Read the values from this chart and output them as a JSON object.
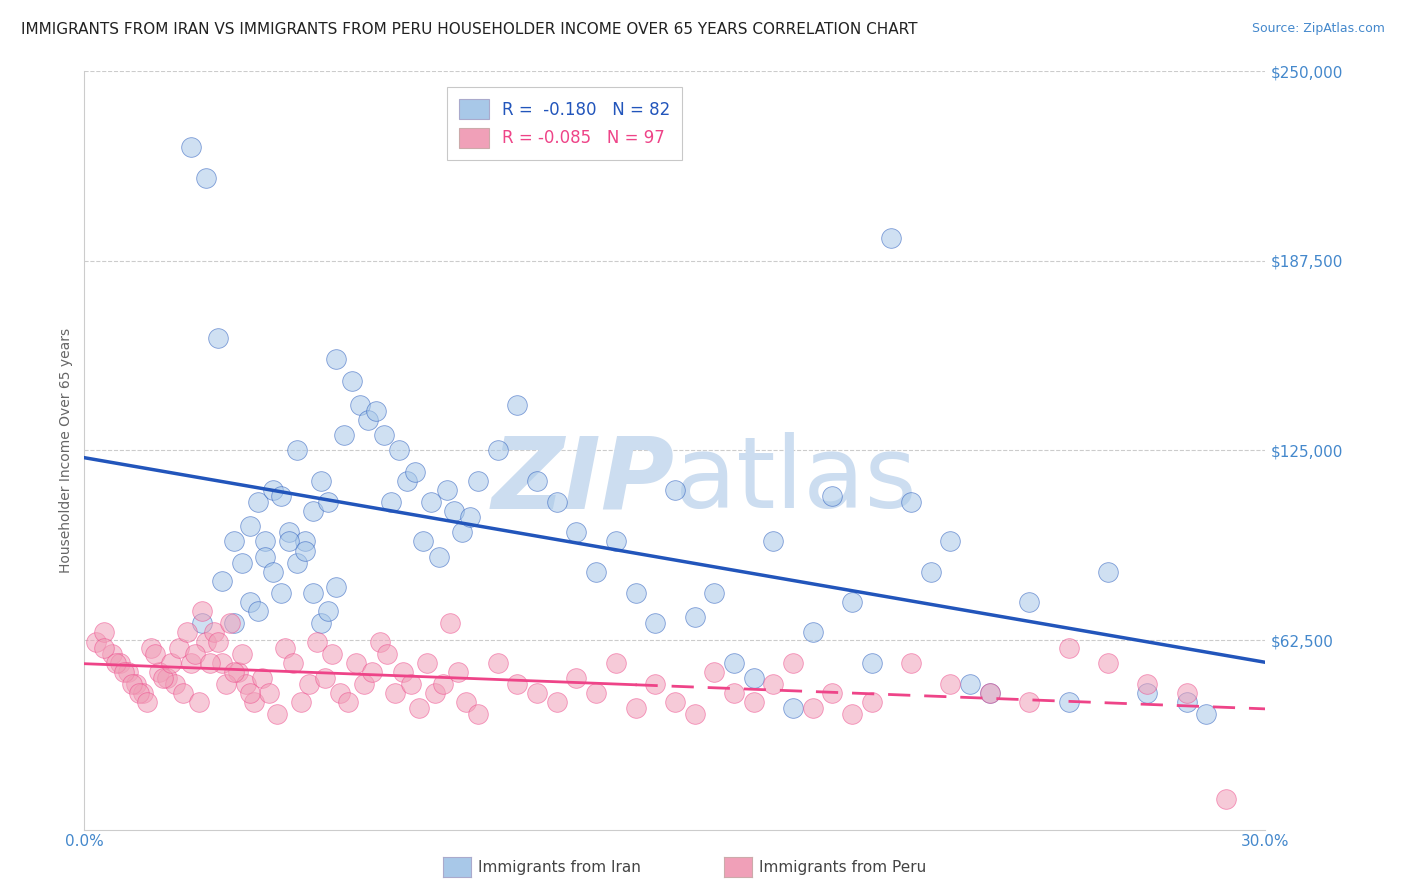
{
  "title": "IMMIGRANTS FROM IRAN VS IMMIGRANTS FROM PERU HOUSEHOLDER INCOME OVER 65 YEARS CORRELATION CHART",
  "source": "Source: ZipAtlas.com",
  "ylabel": "Householder Income Over 65 years",
  "xlim": [
    0.0,
    0.3
  ],
  "ylim": [
    0,
    250000
  ],
  "yticks": [
    0,
    62500,
    125000,
    187500,
    250000
  ],
  "ytick_labels": [
    "",
    "$62,500",
    "$125,000",
    "$187,500",
    "$250,000"
  ],
  "legend_iran_r": "-0.180",
  "legend_iran_n": "82",
  "legend_peru_r": "-0.085",
  "legend_peru_n": "97",
  "color_iran": "#a8c8e8",
  "color_peru": "#f0a0b8",
  "color_trendline_iran": "#2255bb",
  "color_trendline_peru": "#ee4488",
  "color_axis_text": "#4488cc",
  "color_grid": "#cccccc",
  "watermark_color": "#ccddf0",
  "iran_x": [
    0.027,
    0.031,
    0.034,
    0.038,
    0.042,
    0.044,
    0.046,
    0.048,
    0.05,
    0.052,
    0.054,
    0.056,
    0.058,
    0.06,
    0.062,
    0.064,
    0.066,
    0.068,
    0.07,
    0.072,
    0.074,
    0.076,
    0.078,
    0.08,
    0.082,
    0.084,
    0.086,
    0.088,
    0.09,
    0.092,
    0.094,
    0.096,
    0.098,
    0.1,
    0.105,
    0.11,
    0.115,
    0.12,
    0.125,
    0.13,
    0.135,
    0.14,
    0.145,
    0.15,
    0.155,
    0.16,
    0.165,
    0.17,
    0.175,
    0.18,
    0.185,
    0.19,
    0.195,
    0.2,
    0.205,
    0.21,
    0.215,
    0.22,
    0.225,
    0.23,
    0.24,
    0.25,
    0.26,
    0.27,
    0.28,
    0.285,
    0.03,
    0.035,
    0.038,
    0.04,
    0.042,
    0.044,
    0.046,
    0.048,
    0.05,
    0.052,
    0.054,
    0.056,
    0.058,
    0.06,
    0.062,
    0.064
  ],
  "iran_y": [
    225000,
    215000,
    162000,
    68000,
    75000,
    108000,
    95000,
    112000,
    110000,
    98000,
    125000,
    95000,
    105000,
    115000,
    108000,
    155000,
    130000,
    148000,
    140000,
    135000,
    138000,
    130000,
    108000,
    125000,
    115000,
    118000,
    95000,
    108000,
    90000,
    112000,
    105000,
    98000,
    103000,
    115000,
    125000,
    140000,
    115000,
    108000,
    98000,
    85000,
    95000,
    78000,
    68000,
    112000,
    70000,
    78000,
    55000,
    50000,
    95000,
    40000,
    65000,
    110000,
    75000,
    55000,
    195000,
    108000,
    85000,
    95000,
    48000,
    45000,
    75000,
    42000,
    85000,
    45000,
    42000,
    38000,
    68000,
    82000,
    95000,
    88000,
    100000,
    72000,
    90000,
    85000,
    78000,
    95000,
    88000,
    92000,
    78000,
    68000,
    72000,
    80000
  ],
  "peru_x": [
    0.003,
    0.005,
    0.007,
    0.009,
    0.011,
    0.013,
    0.015,
    0.017,
    0.019,
    0.021,
    0.023,
    0.025,
    0.027,
    0.029,
    0.031,
    0.033,
    0.035,
    0.037,
    0.039,
    0.041,
    0.043,
    0.045,
    0.047,
    0.049,
    0.051,
    0.053,
    0.055,
    0.057,
    0.059,
    0.061,
    0.063,
    0.065,
    0.067,
    0.069,
    0.071,
    0.073,
    0.075,
    0.077,
    0.079,
    0.081,
    0.083,
    0.085,
    0.087,
    0.089,
    0.091,
    0.093,
    0.095,
    0.097,
    0.1,
    0.105,
    0.11,
    0.115,
    0.12,
    0.125,
    0.13,
    0.135,
    0.14,
    0.145,
    0.15,
    0.155,
    0.16,
    0.165,
    0.17,
    0.175,
    0.18,
    0.185,
    0.19,
    0.195,
    0.2,
    0.21,
    0.22,
    0.23,
    0.24,
    0.25,
    0.26,
    0.27,
    0.28,
    0.29,
    0.005,
    0.008,
    0.01,
    0.012,
    0.014,
    0.016,
    0.018,
    0.02,
    0.022,
    0.024,
    0.026,
    0.028,
    0.03,
    0.032,
    0.034,
    0.036,
    0.038,
    0.04,
    0.042
  ],
  "peru_y": [
    62000,
    65000,
    58000,
    55000,
    52000,
    48000,
    45000,
    60000,
    52000,
    50000,
    48000,
    45000,
    55000,
    42000,
    62000,
    65000,
    55000,
    68000,
    52000,
    48000,
    42000,
    50000,
    45000,
    38000,
    60000,
    55000,
    42000,
    48000,
    62000,
    50000,
    58000,
    45000,
    42000,
    55000,
    48000,
    52000,
    62000,
    58000,
    45000,
    52000,
    48000,
    40000,
    55000,
    45000,
    48000,
    68000,
    52000,
    42000,
    38000,
    55000,
    48000,
    45000,
    42000,
    50000,
    45000,
    55000,
    40000,
    48000,
    42000,
    38000,
    52000,
    45000,
    42000,
    48000,
    55000,
    40000,
    45000,
    38000,
    42000,
    55000,
    48000,
    45000,
    42000,
    60000,
    55000,
    48000,
    45000,
    10000,
    60000,
    55000,
    52000,
    48000,
    45000,
    42000,
    58000,
    50000,
    55000,
    60000,
    65000,
    58000,
    72000,
    55000,
    62000,
    48000,
    52000,
    58000,
    45000
  ],
  "title_fontsize": 11,
  "source_fontsize": 9
}
